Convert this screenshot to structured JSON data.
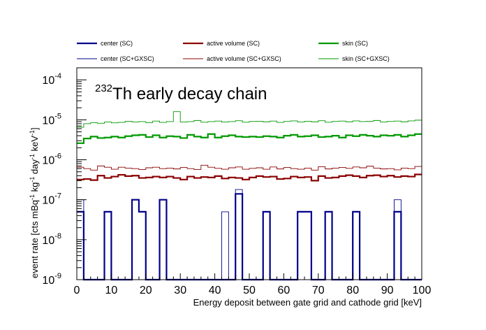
{
  "chart_data": {
    "type": "line",
    "title_mass": "232",
    "title_text": "Th early decay chain",
    "xlabel": "Energy deposit between gate grid and cathode grid [keV]",
    "ylabel_parts": {
      "p1": "event rate [cts mBq",
      "s1": "-1",
      "p2": " kg",
      "s2": "-1",
      "p3": " day",
      "s3": "-1",
      "p4": " keV",
      "s4": "-1",
      "p5": "]"
    },
    "xlim": [
      0,
      100
    ],
    "ylim": [
      1e-09,
      0.0002
    ],
    "yscale": "log",
    "bin_width": 2,
    "x_ticks": [
      0,
      10,
      20,
      30,
      40,
      50,
      60,
      70,
      80,
      90,
      100
    ],
    "y_ticks": [
      {
        "value": 1e-09,
        "base": "10",
        "exp": "-9"
      },
      {
        "value": 1e-08,
        "base": "10",
        "exp": "-8"
      },
      {
        "value": 1e-07,
        "base": "10",
        "exp": "-7"
      },
      {
        "value": 1e-06,
        "base": "10",
        "exp": "-6"
      },
      {
        "value": 1e-05,
        "base": "10",
        "exp": "-5"
      },
      {
        "value": 0.0001,
        "base": "10",
        "exp": "-4"
      }
    ],
    "legend_position": "top",
    "series": [
      {
        "name": "center (SC)",
        "color": "#00008b",
        "width": 2.2,
        "values": [
          5e-08,
          1e-09,
          1e-09,
          1e-09,
          5e-08,
          1e-09,
          1e-09,
          1e-09,
          1e-07,
          5e-08,
          1e-09,
          1e-09,
          1e-07,
          1e-09,
          1e-09,
          1e-09,
          1e-09,
          1e-09,
          1e-09,
          1e-09,
          1e-09,
          1e-09,
          1e-09,
          1.4e-07,
          1e-09,
          1e-09,
          1e-09,
          5e-08,
          1e-09,
          1e-09,
          1e-09,
          1e-09,
          5e-08,
          5e-08,
          1e-09,
          1e-09,
          5e-08,
          1e-09,
          1e-09,
          1e-09,
          5e-08,
          1e-09,
          1e-09,
          1e-09,
          1e-09,
          1e-09,
          5e-08,
          1e-09,
          1e-09,
          1e-09
        ]
      },
      {
        "name": "active volume (SC)",
        "color": "#8b0000",
        "width": 2.2,
        "values": [
          3.2e-07,
          3.3e-07,
          3.1e-07,
          4e-07,
          3.5e-07,
          3.8e-07,
          4.2e-07,
          3.9e-07,
          4e-07,
          3.5e-07,
          3.6e-07,
          3.8e-07,
          3.6e-07,
          3.8e-07,
          3.5e-07,
          3.2e-07,
          3.8e-07,
          3.5e-07,
          3.7e-07,
          3.6e-07,
          3.9e-07,
          3.4e-07,
          3.6e-07,
          3.5e-07,
          3.2e-07,
          3.6e-07,
          3.9e-07,
          3.7e-07,
          3.8e-07,
          3.3e-07,
          3.4e-07,
          3.8e-07,
          3.6e-07,
          3.7e-07,
          3e-07,
          3.9e-07,
          3.5e-07,
          3.6e-07,
          3.9e-07,
          4.1e-07,
          3.9e-07,
          3.6e-07,
          4e-07,
          4.1e-07,
          3.8e-07,
          4e-07,
          3.7e-07,
          3.9e-07,
          3.8e-07,
          4.3e-07
        ]
      },
      {
        "name": "skin (SC)",
        "color": "#009900",
        "width": 2.2,
        "values": [
          2.6e-06,
          3.4e-06,
          3.8e-06,
          3.5e-06,
          3.6e-06,
          3.8e-06,
          3.6e-06,
          3.9e-06,
          4.1e-06,
          4.2e-06,
          3.7e-06,
          4.1e-06,
          3.6e-06,
          3.9e-06,
          3.8e-06,
          3.5e-06,
          4.2e-06,
          3.8e-06,
          3.6e-06,
          4.4e-06,
          3.6e-06,
          3.9e-06,
          4.1e-06,
          3.8e-06,
          3.7e-06,
          3.8e-06,
          3.7e-06,
          3.9e-06,
          3.8e-06,
          3.6e-06,
          4e-06,
          4.2e-06,
          3.8e-06,
          3.9e-06,
          4.1e-06,
          3.7e-06,
          3.8e-06,
          4e-06,
          3.6e-06,
          4.1e-06,
          3.9e-06,
          4.2e-06,
          4e-06,
          3.8e-06,
          4.1e-06,
          4e-06,
          4.2e-06,
          3.8e-06,
          4.1e-06,
          4.4e-06
        ]
      },
      {
        "name": "center (SC+GXSC)",
        "color": "#00008b",
        "width": 0.9,
        "values": [
          1e-07,
          1e-09,
          1e-09,
          1e-09,
          5e-08,
          1e-09,
          1e-09,
          1e-09,
          1e-07,
          5e-08,
          1e-09,
          1e-09,
          1e-07,
          1e-09,
          1e-09,
          1e-09,
          1e-09,
          1e-09,
          1e-09,
          1e-09,
          1e-09,
          5e-08,
          1e-09,
          1.8e-07,
          1e-09,
          1e-09,
          1e-09,
          5e-08,
          1e-09,
          1e-09,
          1e-09,
          1e-09,
          5e-08,
          5e-08,
          1e-09,
          1e-09,
          5e-08,
          1e-09,
          1e-09,
          1e-09,
          5e-08,
          1e-09,
          1e-09,
          1e-09,
          1e-09,
          1e-09,
          1e-07,
          1e-09,
          1e-09,
          1e-09
        ]
      },
      {
        "name": "active volume (SC+GXSC)",
        "color": "#8b0000",
        "width": 0.9,
        "values": [
          6.5e-07,
          6e-07,
          5.5e-07,
          7e-07,
          6.5e-07,
          5.8e-07,
          6.5e-07,
          6.2e-07,
          6e-07,
          5.7e-07,
          6.3e-07,
          6.5e-07,
          6e-07,
          6.2e-07,
          5.9e-07,
          6.4e-07,
          6e-07,
          5.7e-07,
          7.3e-07,
          6.5e-07,
          6.1e-07,
          5.8e-07,
          6.3e-07,
          6.6e-07,
          5.8e-07,
          6.1e-07,
          6.3e-07,
          5.8e-07,
          6.6e-07,
          5.9e-07,
          6.4e-07,
          6e-07,
          5.8e-07,
          6.2e-07,
          5.5e-07,
          6.7e-07,
          5.9e-07,
          6.2e-07,
          6.4e-07,
          6.1e-07,
          6.6e-07,
          6.3e-07,
          6.9e-07,
          6.2e-07,
          5.9e-07,
          6e-07,
          5.6e-07,
          6.2e-07,
          6e-07,
          6.8e-07
        ]
      },
      {
        "name": "skin (SC+GXSC)",
        "color": "#009900",
        "width": 0.9,
        "values": [
          6.5e-06,
          8e-06,
          8.5e-06,
          8.2e-06,
          8.8e-06,
          8.4e-06,
          8.6e-06,
          9.2e-06,
          8.8e-06,
          9e-06,
          8.5e-06,
          9.3e-06,
          8.6e-06,
          9e-06,
          1.6e-05,
          8.8e-06,
          9e-06,
          9.6e-06,
          8.7e-06,
          9e-06,
          9.3e-06,
          8.8e-06,
          9e-06,
          9.5e-06,
          8.7e-06,
          9.1e-06,
          9.2e-06,
          8.9e-06,
          9.3e-06,
          8.6e-06,
          9.1e-06,
          9.4e-06,
          8.8e-06,
          9.2e-06,
          8.9e-06,
          9.5e-06,
          8.7e-06,
          9.1e-06,
          9.3e-06,
          8.9e-06,
          9.4e-06,
          9e-06,
          9.2e-06,
          9.6e-06,
          8.8e-06,
          9.1e-06,
          9.3e-06,
          8.9e-06,
          9.4e-06,
          9.8e-06
        ]
      }
    ]
  }
}
